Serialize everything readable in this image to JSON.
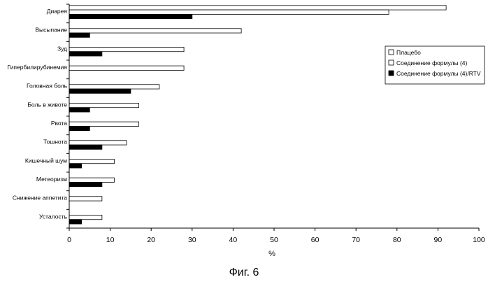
{
  "chart_data": {
    "type": "bar",
    "orientation": "horizontal",
    "categories": [
      "Диарея",
      "Высыпание",
      "Зуд",
      "Гипербилирубинемия",
      "Головная боль",
      "Боль в животе",
      "Рвота",
      "Тошнота",
      "Кишечный шум",
      "Метеоризм",
      "Снижение аппетита",
      "Усталость"
    ],
    "series": [
      {
        "name": "Плацебо",
        "color": "#ffffff",
        "values": [
          92,
          0,
          0,
          0,
          0,
          0,
          0,
          0,
          0,
          0,
          0,
          0
        ]
      },
      {
        "name": "Соединение формулы (4)",
        "color": "#ffffff",
        "values": [
          78,
          42,
          28,
          28,
          22,
          17,
          17,
          14,
          11,
          11,
          8,
          8
        ]
      },
      {
        "name": "Соединение формулы (4)/RTV",
        "color": "#000000",
        "values": [
          30,
          5,
          8,
          0,
          15,
          5,
          5,
          8,
          3,
          8,
          0,
          3
        ]
      }
    ],
    "xlabel": "%",
    "xlim": [
      0,
      100
    ],
    "xticks": [
      0,
      10,
      20,
      30,
      40,
      50,
      60,
      70,
      80,
      90,
      100
    ],
    "grid": false,
    "legend_position": "right"
  },
  "caption": "Фиг. 6"
}
